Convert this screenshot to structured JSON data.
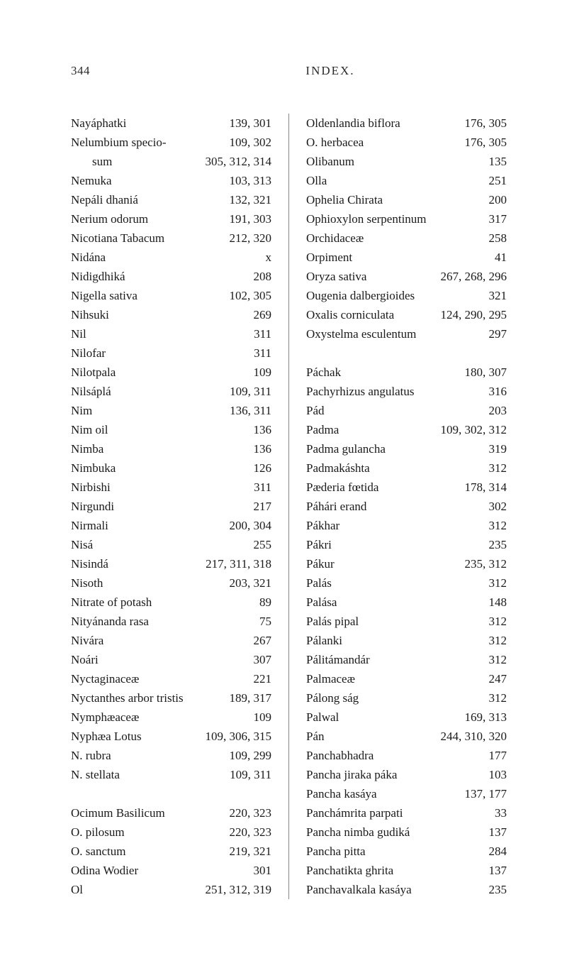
{
  "header": {
    "pageNumber": "344",
    "title": "INDEX."
  },
  "leftColumn": [
    {
      "name": "Nayáphatki",
      "pages": "139, 301"
    },
    {
      "name": "Nelumbium specio-",
      "pages": "109, 302"
    },
    {
      "name": "sum",
      "pages": "305, 312, 314",
      "indent": true
    },
    {
      "name": "Nemuka",
      "pages": "103, 313"
    },
    {
      "name": "Nepáli dhaniá",
      "pages": "132, 321"
    },
    {
      "name": "Nerium odorum",
      "pages": "191, 303"
    },
    {
      "name": "Nicotiana Tabacum",
      "pages": "212, 320"
    },
    {
      "name": "Nidána",
      "pages": "x"
    },
    {
      "name": "Nidigdhiká",
      "pages": "208"
    },
    {
      "name": "Nigella sativa",
      "pages": "102, 305"
    },
    {
      "name": "Nihsuki",
      "pages": "269"
    },
    {
      "name": "Nil",
      "pages": "311"
    },
    {
      "name": "Nilofar",
      "pages": "311"
    },
    {
      "name": "Nilotpala",
      "pages": "109"
    },
    {
      "name": "Nilsáplá",
      "pages": "109, 311"
    },
    {
      "name": "Nim",
      "pages": "136, 311"
    },
    {
      "name": "Nim oil",
      "pages": "136"
    },
    {
      "name": "Nimba",
      "pages": "136"
    },
    {
      "name": "Nimbuka",
      "pages": "126"
    },
    {
      "name": "Nirbishi",
      "pages": "311"
    },
    {
      "name": "Nirgundi",
      "pages": "217"
    },
    {
      "name": "Nirmali",
      "pages": "200, 304"
    },
    {
      "name": "Nisá",
      "pages": "255"
    },
    {
      "name": "Nisindá",
      "pages": "217, 311, 318"
    },
    {
      "name": "Nisoth",
      "pages": "203, 321"
    },
    {
      "name": "Nitrate of potash",
      "pages": "89"
    },
    {
      "name": "Nityánanda rasa",
      "pages": "75"
    },
    {
      "name": "Nivára",
      "pages": "267"
    },
    {
      "name": "Noári",
      "pages": "307"
    },
    {
      "name": "Nyctaginaceæ",
      "pages": "221"
    },
    {
      "name": "Nyctanthes arbor tristis",
      "pages": "189, 317"
    },
    {
      "name": "Nymphæaceæ",
      "pages": "109"
    },
    {
      "name": "Nyphæa Lotus",
      "pages": "109, 306, 315"
    },
    {
      "name": "N. rubra",
      "pages": "109, 299"
    },
    {
      "name": "N. stellata",
      "pages": "109, 311"
    },
    {
      "spacer": true
    },
    {
      "name": "Ocimum Basilicum",
      "pages": "220, 323"
    },
    {
      "name": "O. pilosum",
      "pages": "220, 323"
    },
    {
      "name": "O. sanctum",
      "pages": "219, 321"
    },
    {
      "name": "Odina Wodier",
      "pages": "301"
    },
    {
      "name": "Ol",
      "pages": "251, 312, 319"
    }
  ],
  "rightColumn": [
    {
      "name": "Oldenlandia biflora",
      "pages": "176, 305"
    },
    {
      "name": "O. herbacea",
      "pages": "176, 305"
    },
    {
      "name": "Olibanum",
      "pages": "135"
    },
    {
      "name": "Olla",
      "pages": "251"
    },
    {
      "name": "Ophelia Chirata",
      "pages": "200"
    },
    {
      "name": "Ophioxylon serpentinum",
      "pages": "317"
    },
    {
      "name": "Orchidaceæ",
      "pages": "258"
    },
    {
      "name": "Orpiment",
      "pages": "41"
    },
    {
      "name": "Oryza sativa",
      "pages": "267, 268, 296"
    },
    {
      "name": "Ougenia dalbergioides",
      "pages": "321"
    },
    {
      "name": "Oxalis corniculata",
      "pages": "124, 290, 295"
    },
    {
      "name": "Oxystelma esculentum",
      "pages": "297"
    },
    {
      "spacer": true
    },
    {
      "name": "Páchak",
      "pages": "180, 307"
    },
    {
      "name": "Pachyrhizus angulatus",
      "pages": "316"
    },
    {
      "name": "Pád",
      "pages": "203"
    },
    {
      "name": "Padma",
      "pages": "109, 302, 312"
    },
    {
      "name": "Padma gulancha",
      "pages": "319"
    },
    {
      "name": "Padmakáshta",
      "pages": "312"
    },
    {
      "name": "Pæderia fœtida",
      "pages": "178, 314"
    },
    {
      "name": "Páhári erand",
      "pages": "302"
    },
    {
      "name": "Pákhar",
      "pages": "312"
    },
    {
      "name": "Pákri",
      "pages": "235"
    },
    {
      "name": "Pákur",
      "pages": "235, 312"
    },
    {
      "name": "Palás",
      "pages": "312"
    },
    {
      "name": "Palása",
      "pages": "148"
    },
    {
      "name": "Palás pipal",
      "pages": "312"
    },
    {
      "name": "Pálanki",
      "pages": "312"
    },
    {
      "name": "Pálitámandár",
      "pages": "312"
    },
    {
      "name": "Palmaceæ",
      "pages": "247"
    },
    {
      "name": "Pálong ság",
      "pages": "312"
    },
    {
      "name": "Palwal",
      "pages": "169, 313"
    },
    {
      "name": "Pán",
      "pages": "244, 310, 320"
    },
    {
      "name": "Panchabhadra",
      "pages": "177"
    },
    {
      "name": "Pancha jiraka páka",
      "pages": "103"
    },
    {
      "name": "Pancha kasáya",
      "pages": "137, 177"
    },
    {
      "name": "Panchámrita parpati",
      "pages": "33"
    },
    {
      "name": "Pancha nimba gudiká",
      "pages": "137"
    },
    {
      "name": "Pancha pitta",
      "pages": "284"
    },
    {
      "name": "Panchatikta ghrita",
      "pages": "137"
    },
    {
      "name": "Panchavalkala kasáya",
      "pages": "235"
    }
  ]
}
